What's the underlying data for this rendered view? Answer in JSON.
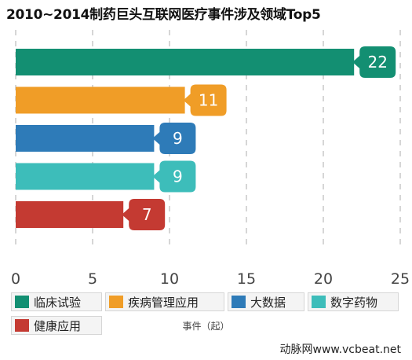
{
  "chart_data": {
    "type": "bar",
    "orientation": "horizontal",
    "title": "2010~2014制药巨头互联网医疗事件涉及领域Top5",
    "categories": [
      "临床试验",
      "疾病管理应用",
      "大数据",
      "数字药物",
      "健康应用"
    ],
    "values": [
      22,
      11,
      9,
      9,
      7
    ],
    "colors": [
      "#138f72",
      "#f09d27",
      "#2e7bb8",
      "#3dbdba",
      "#c43a32"
    ],
    "xlabel": "事件（起）",
    "xlim": [
      0,
      25
    ],
    "xticks": [
      "0",
      "5",
      "10",
      "15",
      "20",
      "25"
    ],
    "grid": "vertical-dashed",
    "legend": "bottom",
    "value_labels": [
      "22",
      "11",
      "9",
      "9",
      "7"
    ]
  },
  "source": "动脉网www.vcbeat.net"
}
